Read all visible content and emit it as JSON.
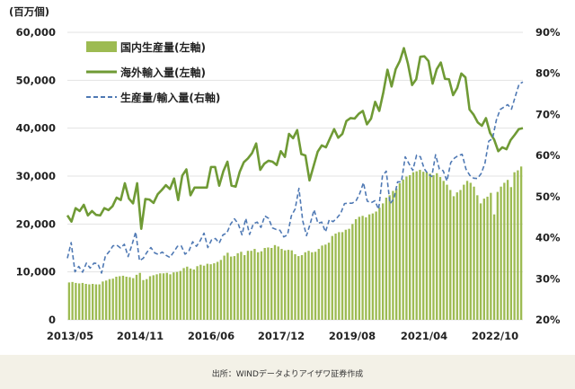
{
  "colors": {
    "bar": "#9dbb52",
    "line": "#6f9a35",
    "ratio": "#4f79b4",
    "grid": "#e3e3e3",
    "footer_bg": "#f3f1e7"
  },
  "chart_data": {
    "type": "bar",
    "y_unit_label": "(百万個)",
    "x_tick_labels": [
      "2013/05",
      "2014/11",
      "2016/06",
      "2017/12",
      "2019/08",
      "2021/04",
      "2022/10"
    ],
    "y_left_ticks": [
      "0",
      "10,000",
      "20,000",
      "30,000",
      "40,000",
      "50,000",
      "60,000"
    ],
    "y_right_ticks": [
      "20%",
      "30%",
      "40%",
      "50%",
      "60%",
      "70%",
      "80%",
      "90%"
    ],
    "ylim_left": [
      0,
      60000
    ],
    "ylim_right": [
      20,
      90
    ],
    "x_start": "2013-05",
    "legend_position": "top-left",
    "series": [
      {
        "name": "国内生産量(左軸)",
        "type": "bar",
        "axis": "left",
        "values": [
          7800,
          7900,
          7700,
          7600,
          7700,
          7500,
          7400,
          7500,
          7400,
          7400,
          8000,
          8200,
          8500,
          8600,
          9000,
          9100,
          9200,
          9000,
          8900,
          8700,
          9400,
          9800,
          8300,
          8500,
          9100,
          9300,
          9500,
          9700,
          9700,
          9800,
          9500,
          9900,
          10000,
          10200,
          10800,
          11100,
          10700,
          10500,
          11200,
          11500,
          11300,
          11700,
          11600,
          11800,
          12100,
          12500,
          13400,
          14000,
          13200,
          13300,
          13900,
          14200,
          13500,
          14400,
          14400,
          14800,
          14100,
          14300,
          15000,
          15100,
          15000,
          15600,
          15300,
          14800,
          14500,
          14600,
          14500,
          13700,
          13300,
          13500,
          14100,
          14400,
          14100,
          14200,
          14800,
          15500,
          15700,
          16100,
          17500,
          18000,
          18300,
          18300,
          18800,
          19000,
          20000,
          21000,
          21500,
          21700,
          21400,
          22000,
          22200,
          22600,
          23400,
          24300,
          25500,
          26000,
          26900,
          27400,
          28500,
          29300,
          29900,
          30200,
          30800,
          31000,
          31300,
          30900,
          30800,
          30500,
          30200,
          30600,
          29800,
          29000,
          28200,
          27100,
          25800,
          26600,
          27100,
          28200,
          29000,
          28600,
          27800,
          26000,
          24300,
          25300,
          25700,
          26500,
          22000,
          26700,
          27800,
          28600,
          29200,
          27700,
          30800,
          31200,
          32000
        ],
        "display_values": [
          7800,
          7700,
          7600,
          7600,
          7600,
          7100,
          7100,
          7200,
          7300,
          7100,
          7800,
          8200,
          8500,
          8500,
          9000,
          8800,
          9000,
          9200,
          9000,
          9200,
          8300,
          9000,
          8500,
          9100,
          9300,
          9400,
          9600,
          9800,
          9900,
          9500,
          9900,
          10200,
          11000,
          10800,
          10400,
          10900,
          10900,
          11600,
          11400,
          11100,
          11400,
          11800,
          12400,
          12800,
          13400,
          14100,
          13500,
          13100,
          13900,
          14100,
          13600,
          14300,
          14100,
          14900,
          14300,
          14300,
          15000,
          15100,
          15000,
          15300,
          15500,
          14600,
          14600,
          14700,
          14100,
          13800,
          13000,
          13300,
          14000,
          14000,
          14000,
          14800,
          15300,
          15800,
          16100,
          17200,
          17800,
          18200,
          18100,
          18400,
          18900,
          18800,
          19800,
          20700,
          21300,
          21800,
          21400,
          21600,
          21800,
          22200,
          23000,
          24000,
          25000,
          25800,
          26700,
          27100,
          28300,
          29100,
          29200,
          29800,
          30500,
          31000,
          30800,
          30700,
          30200,
          30900,
          30400,
          29800,
          29200,
          28800,
          27500,
          27000,
          26000,
          25500,
          26600,
          27500,
          28600,
          27300,
          26400,
          25900,
          25000,
          24400,
          25300,
          26200,
          22000,
          26100,
          27500,
          28500,
          29200,
          28000,
          30700,
          31300,
          31900
        ],
        "hidden_note": ""
      },
      {
        "name": "海外輸入量(左軸)",
        "type": "line",
        "axis": "left",
        "values": [
          21800,
          20500,
          23300,
          22700,
          24000,
          21800,
          22700,
          21900,
          21800,
          23300,
          22900,
          23700,
          25500,
          25000,
          28500,
          25300,
          24300,
          28500,
          19000,
          25200,
          25100,
          24400,
          26200,
          27100,
          28100,
          27300,
          29500,
          25000,
          30100,
          31400,
          26000,
          27600,
          27600,
          27600,
          27600,
          31900,
          31900,
          28000,
          31000,
          33000,
          28000,
          27800,
          30900,
          32900,
          33700,
          34800,
          36800,
          31300,
          32600,
          33200,
          33000,
          32300,
          35200,
          34000,
          38800,
          37900,
          39600,
          34600,
          34300,
          29100,
          32100,
          35100,
          36400,
          36000,
          37900,
          39800,
          38000,
          38800,
          41500,
          42100,
          42000,
          43000,
          43600,
          40800,
          42000,
          45500,
          43600,
          47500,
          52200,
          48700,
          52300,
          54000,
          56700,
          53400,
          49000,
          50200,
          54900,
          55000,
          54000,
          49300,
          52300,
          53700,
          50300,
          50200,
          46900,
          48400,
          51400,
          50600,
          43900,
          42800,
          41200,
          40500,
          42100,
          39000,
          37600,
          35200,
          36000,
          35600,
          37500,
          38600,
          39800,
          40000
        ],
        "display_values": [
          21700,
          20200,
          23300,
          22800,
          24100,
          21900,
          22700,
          22000,
          21900,
          23400,
          22900,
          23400,
          25000,
          24700,
          28400,
          25200,
          24300,
          28300,
          18900,
          24900,
          24900,
          24300,
          26200,
          27100,
          28100,
          27300,
          29600,
          24800,
          30100,
          31300,
          26100,
          27500,
          27500,
          27500,
          27700,
          31800,
          31800,
          27900,
          30800,
          32700,
          28000,
          27700,
          30900,
          32700,
          33700,
          34800,
          36500,
          31100,
          32600,
          33200,
          32700,
          31900,
          35100,
          33900,
          38700,
          38000,
          39400,
          34800,
          34200,
          29100,
          32100,
          35300,
          36300,
          35900,
          37900,
          39800,
          38100,
          38800,
          41300,
          41900,
          41800,
          43000,
          43500,
          40800,
          41900,
          45200,
          43400,
          47400,
          52100,
          48800,
          52100,
          54000,
          56600,
          53600,
          49000,
          50200,
          54600,
          55000,
          53800,
          49100,
          52200,
          53400,
          50400,
          50200,
          47100,
          48500,
          51300,
          50600,
          44000,
          42900,
          41100,
          40500,
          42100,
          39000,
          37600,
          35300,
          36000,
          35700,
          37500,
          38600,
          39600,
          40000
        ],
        "hidden_note": ""
      },
      {
        "name": "生産量/輸入量(右軸)",
        "type": "line",
        "axis": "right",
        "values": [
          35.0,
          38.8,
          31.7,
          33.0,
          31.6,
          33.8,
          32.6,
          33.8,
          33.7,
          31.4,
          35.5,
          36.6,
          38.0,
          38.2,
          37.5,
          38.4,
          35.4,
          38.2,
          41.4,
          34.4,
          35.0,
          36.5,
          37.6,
          36.3,
          35.9,
          36.5,
          35.7,
          35.2,
          36.5,
          37.9,
          38.0,
          36.0,
          36.7,
          39.0,
          37.9,
          39.3,
          41.1,
          37.6,
          39.5,
          39.8,
          38.7,
          40.7,
          41.1,
          43.3,
          44.6,
          43.4,
          40.7,
          44.7,
          40.8,
          43.4,
          43.8,
          42.5,
          45.3,
          44.7,
          42.4,
          42.0,
          41.8,
          40.2,
          40.7,
          45.3,
          47.0,
          52.0,
          44.1,
          40.5,
          43.5,
          46.8,
          43.5,
          43.8,
          41.4,
          44.4,
          43.9,
          44.8,
          45.9,
          48.3,
          48.4,
          48.4,
          48.9,
          50.7,
          53.4,
          48.9,
          48.5,
          49.0,
          46.9,
          55.0,
          56.2,
          48.3,
          49.4,
          53.6,
          53.6,
          59.7,
          58.0,
          56.4,
          60.1,
          59.7,
          56.8,
          55.5,
          54.9,
          60.2,
          56.7,
          56.3,
          53.8,
          58.3,
          59.4,
          60.0,
          60.3,
          56.7,
          55.2,
          54.5,
          54.4,
          55.6,
          58.1,
          63.5,
          64.1,
          68.6,
          71.2,
          71.8,
          72.4,
          71.3,
          74.4,
          77.4,
          77.9
        ],
        "display_values": [
          35.0,
          38.5,
          32.1,
          33.4,
          31.7,
          33.5,
          32.5,
          33.3,
          33.4,
          33.7,
          35.0,
          36.0,
          37.5,
          38.4,
          37.4,
          37.4,
          36.5,
          38.4,
          40.5,
          34.3,
          35.1,
          36.7,
          37.1,
          36.7,
          36.0,
          36.5,
          35.9,
          35.2,
          36.5,
          37.8,
          37.1,
          36.5,
          36.8,
          39.2,
          38.5,
          39.1,
          40.9,
          38.2,
          39.4,
          39.9,
          38.7,
          40.3,
          41.5,
          43.2,
          44.5,
          43.6,
          41.2,
          44.4,
          42.4,
          42.3,
          43.1,
          42.4,
          44.7,
          44.6,
          42.5,
          42.1,
          41.9,
          40.7,
          41.2,
          44.7,
          46.1,
          50.2,
          44.5,
          41.4,
          43.3,
          45.5,
          43.5,
          43.7,
          42.2,
          44.4,
          44.3,
          44.6,
          45.7,
          47.2,
          48.2,
          48.5,
          48.9,
          50.4,
          52.2,
          49.9,
          49.0,
          49.1,
          48.0,
          54.6,
          55.1,
          49.9,
          50.5,
          52.9,
          53.5,
          57.7,
          57.4,
          56.8,
          59.3,
          58.8,
          57.0,
          56.1,
          55.8,
          59.7,
          57.2,
          56.5,
          54.7,
          56.9,
          58.8,
          59.4,
          59.5,
          57.2,
          56.1,
          55.4,
          55.0,
          56.0,
          58.0,
          62.8,
          64.4,
          68.2,
          70.7,
          71.7,
          72.6,
          71.9,
          74.0,
          77.0,
          77.9
        ],
        "hidden_note": ""
      }
    ]
  },
  "footer": {
    "source": "出所：WINDデータよりアイザワ証券作成"
  }
}
